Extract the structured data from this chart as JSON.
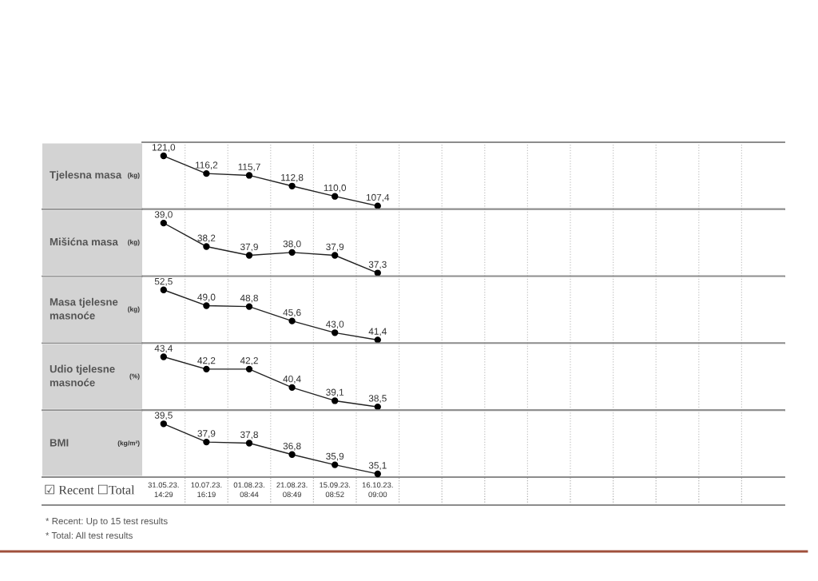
{
  "chart_data": [
    {
      "type": "line",
      "ylabel": "Tjelesna masa (kg)",
      "values": [
        121.0,
        116.2,
        115.7,
        112.8,
        110.0,
        107.4,
        null,
        null,
        null,
        null,
        null,
        null,
        null,
        null,
        null
      ],
      "value_labels": [
        "121,0",
        "116,2",
        "115,7",
        "112,8",
        "110,0",
        "107,4",
        null,
        null,
        null,
        null,
        null,
        null,
        null,
        null,
        null
      ],
      "color": "#222222",
      "ylim": [
        106.5,
        124.7
      ],
      "marker": "circle",
      "line_style": "solid",
      "grid": "x"
    },
    {
      "type": "line",
      "ylabel": "Mišićna masa (kg)",
      "values": [
        39.0,
        38.2,
        37.9,
        38.0,
        37.9,
        37.3,
        null,
        null,
        null,
        null,
        null,
        null,
        null,
        null,
        null
      ],
      "value_labels": [
        "39,0",
        "38,2",
        "37,9",
        "38,0",
        "37,9",
        "37,3",
        null,
        null,
        null,
        null,
        null,
        null,
        null,
        null,
        null
      ],
      "color": "#222222",
      "ylim": [
        37.19,
        39.47
      ],
      "marker": "circle",
      "line_style": "solid",
      "grid": "x"
    },
    {
      "type": "line",
      "ylabel": "Masa tjelesne\nmasnoće (kg)",
      "values": [
        52.5,
        49.0,
        48.8,
        45.6,
        43.0,
        41.4,
        null,
        null,
        null,
        null,
        null,
        null,
        null,
        null,
        null
      ],
      "value_labels": [
        "52,5",
        "49,0",
        "48,8",
        "45,6",
        "43,0",
        "41,4",
        null,
        null,
        null,
        null,
        null,
        null,
        null,
        null,
        null
      ],
      "color": "#222222",
      "ylim": [
        40.68,
        55.54
      ],
      "marker": "circle",
      "line_style": "solid",
      "grid": "x"
    },
    {
      "type": "line",
      "ylabel": "Udio tjelesne\nmasnoće (%)",
      "values": [
        43.4,
        42.2,
        42.2,
        40.4,
        39.1,
        38.5,
        null,
        null,
        null,
        null,
        null,
        null,
        null,
        null,
        null
      ],
      "value_labels": [
        "43,4",
        "42,2",
        "42,2",
        "40,4",
        "39,1",
        "38,5",
        null,
        null,
        null,
        null,
        null,
        null,
        null,
        null,
        null
      ],
      "color": "#222222",
      "ylim": [
        38.18,
        44.74
      ],
      "marker": "circle",
      "line_style": "solid",
      "grid": "x"
    },
    {
      "type": "line",
      "ylabel": "BMI (kg/m²)",
      "categories": [
        "31.05.23.\n14:29",
        "10.07.23.\n16:19",
        "01.08.23.\n08:44",
        "21.08.23.\n08:49",
        "15.09.23.\n08:52",
        "16.10.23.\n09:00",
        null,
        null,
        null,
        null,
        null,
        null,
        null,
        null,
        null
      ],
      "values": [
        39.5,
        37.9,
        37.8,
        36.8,
        35.9,
        35.1,
        null,
        null,
        null,
        null,
        null,
        null,
        null,
        null,
        null
      ],
      "value_labels": [
        "39,5",
        "37,9",
        "37,8",
        "36,8",
        "35,9",
        "35,1",
        null,
        null,
        null,
        null,
        null,
        null,
        null,
        null,
        null
      ],
      "color": "#222222",
      "ylim": [
        34.82,
        40.7
      ],
      "marker": "circle",
      "line_style": "solid",
      "grid": "x",
      "tick_labels": "x",
      "annotations": [
        "☑ Recent ☐Total",
        "* Recent: Up to 15 test results",
        "* Total: All test results"
      ]
    }
  ]
}
